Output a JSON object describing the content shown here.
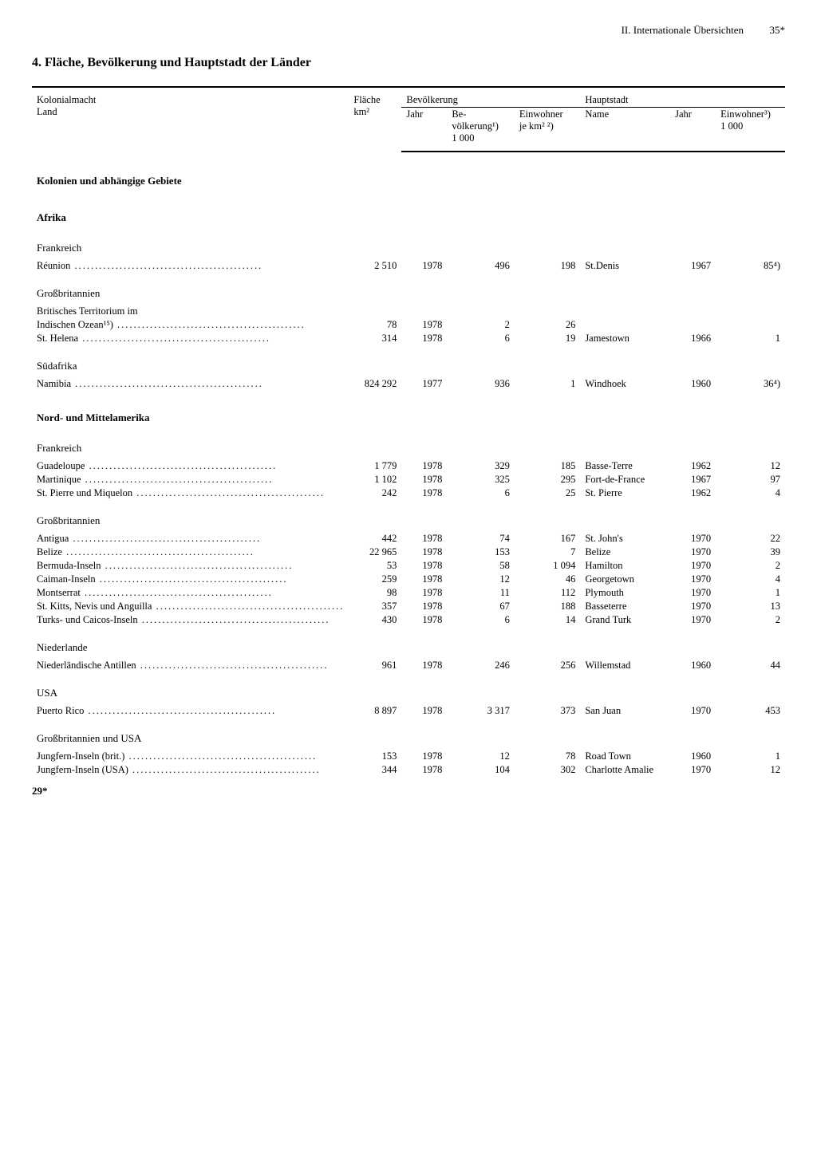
{
  "header": {
    "section": "II. Internationale Übersichten",
    "page": "35*"
  },
  "title": "4. Fläche, Bevölkerung und Hauptstadt der Länder",
  "columns": {
    "group1": "Kolonialmacht\nLand",
    "group2": "Fläche\nkm²",
    "group3": "Bevölkerung",
    "group3a": "Jahr",
    "group3b": "Be-\nvölkerung¹)\n1 000",
    "group3c": "Einwohner\nje km² ²)",
    "group4": "Hauptstadt",
    "group4a": "Name",
    "group4b": "Jahr",
    "group4c": "Einwohner³)\n1 000"
  },
  "section_label": "Kolonien und abhängige Gebiete",
  "regions": [
    {
      "name": "Afrika",
      "groups": [
        {
          "power": "Frankreich",
          "rows": [
            {
              "land": "Réunion",
              "area": "2 510",
              "pyr": "1978",
              "pop": "496",
              "dens": "198",
              "cap": "St.Denis",
              "cyr": "1967",
              "cpop": "85⁴)"
            }
          ]
        },
        {
          "power": "Großbritannien",
          "rows": [
            {
              "land": "Britisches Territorium im",
              "indent": false,
              "nodot": true
            },
            {
              "land": "Indischen Ozean¹⁵)",
              "indent": true,
              "area": "78",
              "pyr": "1978",
              "pop": "2",
              "dens": "26"
            },
            {
              "land": "St. Helena",
              "area": "314",
              "pyr": "1978",
              "pop": "6",
              "dens": "19",
              "cap": "Jamestown",
              "cyr": "1966",
              "cpop": "1"
            }
          ]
        },
        {
          "power": "Südafrika",
          "rows": [
            {
              "land": "Namibia",
              "area": "824 292",
              "pyr": "1977",
              "pop": "936",
              "dens": "1",
              "cap": "Windhoek",
              "cyr": "1960",
              "cpop": "36⁴)"
            }
          ]
        }
      ]
    },
    {
      "name": "Nord- und Mittelamerika",
      "groups": [
        {
          "power": "Frankreich",
          "rows": [
            {
              "land": "Guadeloupe",
              "area": "1 779",
              "pyr": "1978",
              "pop": "329",
              "dens": "185",
              "cap": "Basse-Terre",
              "cyr": "1962",
              "cpop": "12"
            },
            {
              "land": "Martinique",
              "area": "1 102",
              "pyr": "1978",
              "pop": "325",
              "dens": "295",
              "cap": "Fort-de-France",
              "cyr": "1967",
              "cpop": "97"
            },
            {
              "land": "St. Pierre und Miquelon",
              "area": "242",
              "pyr": "1978",
              "pop": "6",
              "dens": "25",
              "cap": "St. Pierre",
              "cyr": "1962",
              "cpop": "4"
            }
          ]
        },
        {
          "power": "Großbritannien",
          "rows": [
            {
              "land": "Antigua",
              "area": "442",
              "pyr": "1978",
              "pop": "74",
              "dens": "167",
              "cap": "St. John's",
              "cyr": "1970",
              "cpop": "22"
            },
            {
              "land": "Belize",
              "area": "22 965",
              "pyr": "1978",
              "pop": "153",
              "dens": "7",
              "cap": "Belize",
              "cyr": "1970",
              "cpop": "39"
            },
            {
              "land": "Bermuda-Inseln",
              "area": "53",
              "pyr": "1978",
              "pop": "58",
              "dens": "1 094",
              "cap": "Hamilton",
              "cyr": "1970",
              "cpop": "2"
            },
            {
              "land": "Caiman-Inseln",
              "area": "259",
              "pyr": "1978",
              "pop": "12",
              "dens": "46",
              "cap": "Georgetown",
              "cyr": "1970",
              "cpop": "4"
            },
            {
              "land": "Montserrat",
              "area": "98",
              "pyr": "1978",
              "pop": "11",
              "dens": "112",
              "cap": "Plymouth",
              "cyr": "1970",
              "cpop": "1"
            },
            {
              "land": "St. Kitts, Nevis und Anguilla",
              "area": "357",
              "pyr": "1978",
              "pop": "67",
              "dens": "188",
              "cap": "Basseterre",
              "cyr": "1970",
              "cpop": "13"
            },
            {
              "land": "Turks- und Caicos-Inseln",
              "area": "430",
              "pyr": "1978",
              "pop": "6",
              "dens": "14",
              "cap": "Grand Turk",
              "cyr": "1970",
              "cpop": "2"
            }
          ]
        },
        {
          "power": "Niederlande",
          "rows": [
            {
              "land": "Niederländische Antillen",
              "area": "961",
              "pyr": "1978",
              "pop": "246",
              "dens": "256",
              "cap": "Willemstad",
              "cyr": "1960",
              "cpop": "44"
            }
          ]
        },
        {
          "power": "USA",
          "rows": [
            {
              "land": "Puerto Rico",
              "area": "8 897",
              "pyr": "1978",
              "pop": "3 317",
              "dens": "373",
              "cap": "San Juan",
              "cyr": "1970",
              "cpop": "453"
            }
          ]
        },
        {
          "power": "Großbritannien und USA",
          "rows": [
            {
              "land": "Jungfern-Inseln (brit.)",
              "area": "153",
              "pyr": "1978",
              "pop": "12",
              "dens": "78",
              "cap": "Road Town",
              "cyr": "1960",
              "cpop": "1"
            },
            {
              "land": "Jungfern-Inseln (USA)",
              "area": "344",
              "pyr": "1978",
              "pop": "104",
              "dens": "302",
              "cap": "Charlotte Amalie",
              "cyr": "1970",
              "cpop": "12"
            }
          ]
        }
      ]
    }
  ],
  "footer": "29*"
}
